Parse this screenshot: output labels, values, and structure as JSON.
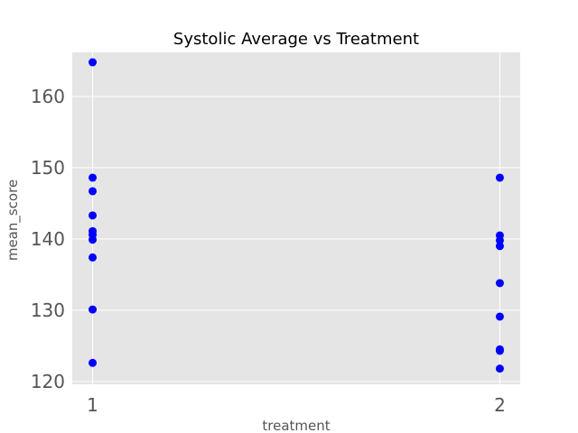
{
  "chart_data": {
    "type": "scatter",
    "title": "Systolic Average vs Treatment",
    "xlabel": "treatment",
    "ylabel": "mean_score",
    "x_ticks": [
      "1",
      "2"
    ],
    "y_ticks": [
      "120",
      "130",
      "140",
      "150",
      "160"
    ],
    "xlim": [
      0.95,
      2.05
    ],
    "ylim": [
      119.6,
      166.2
    ],
    "grid": true,
    "background": "#e5e5e5",
    "grid_color": "#ffffff",
    "marker_color": "#0000ff",
    "points": [
      {
        "x": 1,
        "y": 164.8
      },
      {
        "x": 1,
        "y": 148.6
      },
      {
        "x": 1,
        "y": 146.7
      },
      {
        "x": 1,
        "y": 143.3
      },
      {
        "x": 1,
        "y": 141.1
      },
      {
        "x": 1,
        "y": 140.6
      },
      {
        "x": 1,
        "y": 139.9
      },
      {
        "x": 1,
        "y": 137.4
      },
      {
        "x": 1,
        "y": 130.1
      },
      {
        "x": 1,
        "y": 122.6
      },
      {
        "x": 2,
        "y": 148.6
      },
      {
        "x": 2,
        "y": 140.5
      },
      {
        "x": 2,
        "y": 139.8
      },
      {
        "x": 2,
        "y": 139.0
      },
      {
        "x": 2,
        "y": 133.8
      },
      {
        "x": 2,
        "y": 129.1
      },
      {
        "x": 2,
        "y": 124.5
      },
      {
        "x": 2,
        "y": 124.3
      },
      {
        "x": 2,
        "y": 121.8
      }
    ]
  }
}
